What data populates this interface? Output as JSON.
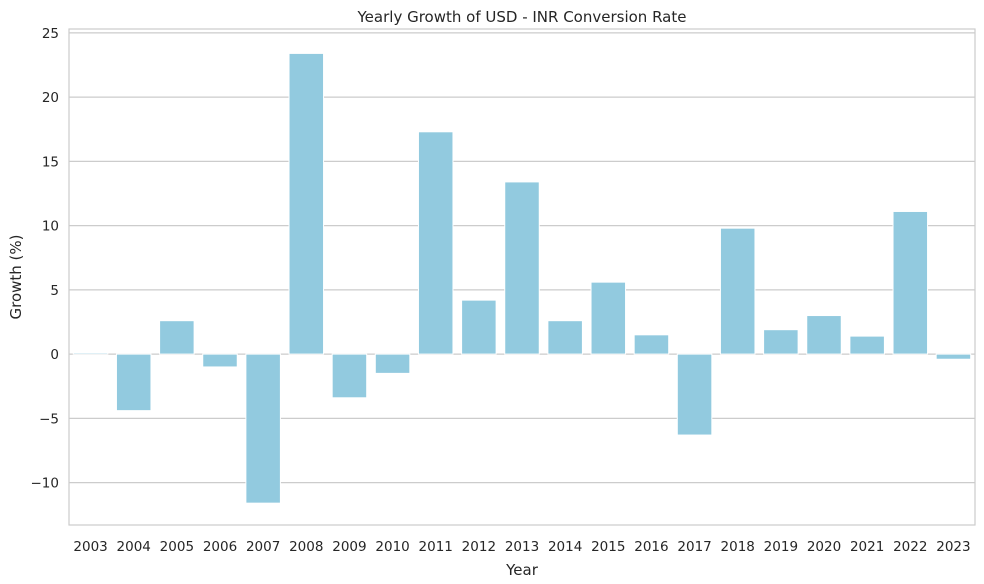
{
  "chart_data": {
    "type": "bar",
    "title": "Yearly Growth of USD - INR Conversion Rate",
    "xlabel": "Year",
    "ylabel": "Growth (%)",
    "categories": [
      "2003",
      "2004",
      "2005",
      "2006",
      "2007",
      "2008",
      "2009",
      "2010",
      "2011",
      "2012",
      "2013",
      "2014",
      "2015",
      "2016",
      "2017",
      "2018",
      "2019",
      "2020",
      "2021",
      "2022",
      "2023"
    ],
    "values": [
      0.1,
      -4.4,
      2.6,
      -1.0,
      -11.6,
      23.4,
      -3.4,
      -1.5,
      17.3,
      4.2,
      13.4,
      2.6,
      5.6,
      1.5,
      -6.3,
      9.8,
      1.9,
      3.0,
      1.4,
      11.1,
      -0.4
    ],
    "ylim": [
      -13.3,
      25.3
    ],
    "yticks": [
      -10,
      -5,
      0,
      5,
      10,
      15,
      20,
      25
    ],
    "ytick_labels": [
      "−10",
      "−5",
      "0",
      "5",
      "10",
      "15",
      "20",
      "25"
    ],
    "grid": "horizontal",
    "colors": {
      "bar": "#92cadf",
      "grid": "#cccccc",
      "spine": "#cccccc",
      "background": "#ffffff",
      "text": "#262626"
    }
  }
}
